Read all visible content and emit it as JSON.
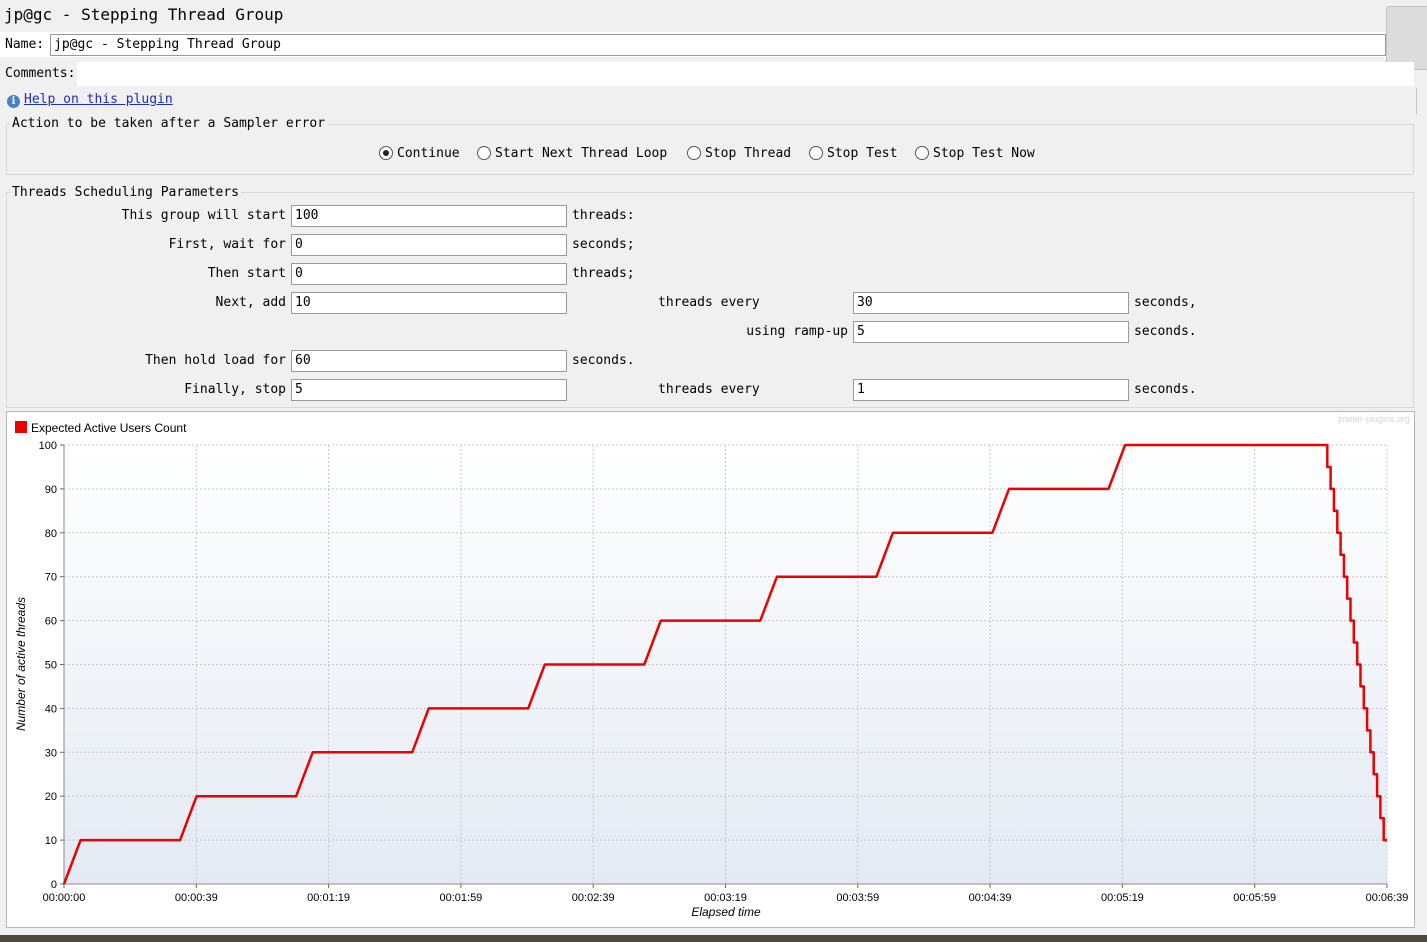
{
  "window": {
    "title": "jp@gc - Stepping Thread Group"
  },
  "name_field": {
    "label": "Name:",
    "value": "jp@gc - Stepping Thread Group"
  },
  "comments_field": {
    "label": "Comments:",
    "value": ""
  },
  "help": {
    "label": "Help on this plugin"
  },
  "sampler_error": {
    "title": "Action to be taken after a Sampler error",
    "options": [
      "Continue",
      "Start Next Thread Loop",
      "Stop Thread",
      "Stop Test",
      "Stop Test Now"
    ],
    "selected": "Continue"
  },
  "scheduling": {
    "title": "Threads Scheduling Parameters",
    "start_label": "This group will start",
    "start_value": "100",
    "start_unit": "threads:",
    "wait_label": "First, wait for",
    "wait_value": "0",
    "wait_unit": "seconds;",
    "then_label": "Then start",
    "then_value": "0",
    "then_unit": "threads;",
    "add_label": "Next, add",
    "add_value": "10",
    "add_every_label": "threads every",
    "add_every_value": "30",
    "add_every_unit": "seconds,",
    "rampup_label": "using ramp-up",
    "rampup_value": "5",
    "rampup_unit": "seconds.",
    "hold_label": "Then hold load for",
    "hold_value": "60",
    "hold_unit": "seconds.",
    "stop_label": "Finally, stop",
    "stop_value": "5",
    "stop_every_label": "threads every",
    "stop_every_value": "1",
    "stop_every_unit": "seconds."
  },
  "colors": {
    "series": "#ee0000",
    "grid": "#c8c8c8"
  },
  "chart_data": {
    "type": "line",
    "watermark": "jmeter-plugins.org",
    "xlabel": "Elapsed time",
    "ylabel": "Number of active threads",
    "ylim": [
      0,
      100
    ],
    "xlim_seconds": [
      0,
      399
    ],
    "x_ticks": [
      "00:00:00",
      "00:00:39",
      "00:01:19",
      "00:01:59",
      "00:02:39",
      "00:03:19",
      "00:03:59",
      "00:04:39",
      "00:05:19",
      "00:05:59",
      "00:06:39"
    ],
    "y_ticks": [
      0,
      10,
      20,
      30,
      40,
      50,
      60,
      70,
      80,
      90,
      100
    ],
    "legend_position": "top-left",
    "series": [
      {
        "name": "Expected Active Users Count",
        "x_seconds": [
          0,
          5,
          35,
          40,
          70,
          75,
          105,
          110,
          140,
          145,
          175,
          180,
          210,
          215,
          245,
          250,
          280,
          285,
          315,
          320,
          380,
          381,
          381,
          382,
          382,
          383,
          383,
          384,
          384,
          385,
          385,
          386,
          386,
          387,
          387,
          388,
          388,
          389,
          389,
          390,
          390,
          391,
          391,
          392,
          392,
          393,
          393,
          394,
          394,
          395,
          395,
          396,
          396,
          397,
          397,
          398,
          398,
          399
        ],
        "y": [
          0,
          10,
          10,
          20,
          20,
          30,
          30,
          40,
          40,
          50,
          50,
          60,
          60,
          70,
          70,
          80,
          80,
          90,
          90,
          100,
          100,
          100,
          95,
          95,
          90,
          90,
          85,
          85,
          80,
          80,
          75,
          75,
          70,
          70,
          65,
          65,
          60,
          60,
          55,
          55,
          50,
          50,
          45,
          45,
          40,
          40,
          35,
          35,
          30,
          30,
          25,
          25,
          20,
          20,
          15,
          15,
          10,
          10
        ]
      }
    ]
  }
}
